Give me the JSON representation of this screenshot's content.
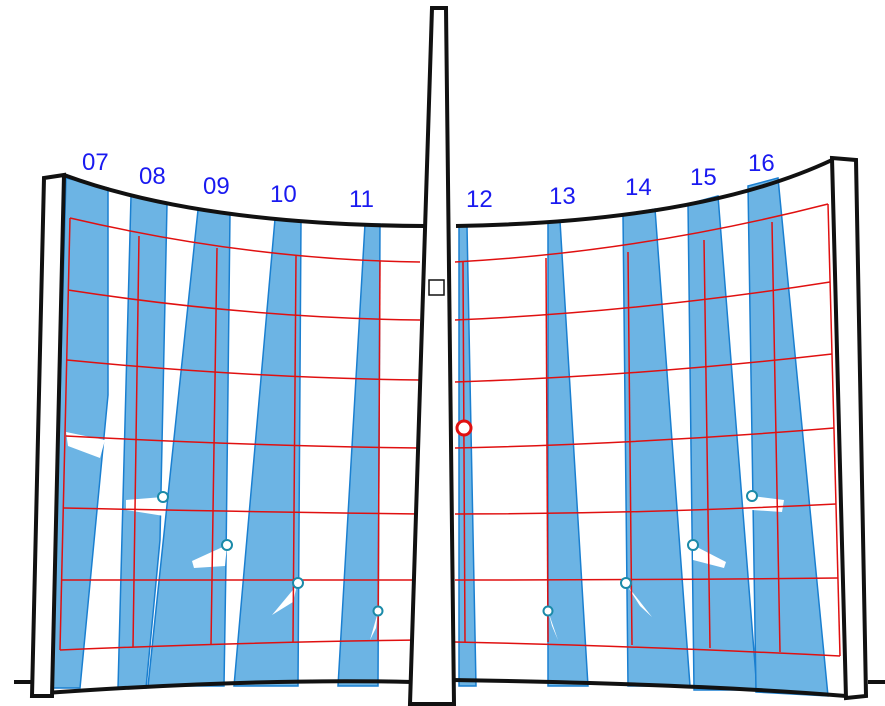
{
  "diagram": {
    "hour_labels_left": [
      "07",
      "08",
      "09",
      "10",
      "11"
    ],
    "hour_labels_right": [
      "12",
      "13",
      "14",
      "15",
      "16"
    ],
    "colors": {
      "band_fill": "#6cb4e4",
      "band_edge": "#1a7fd0",
      "grid": "#e01010",
      "outline": "#111111",
      "label": "#1a1af0",
      "marker": "#1a8aa8",
      "noon_marker": "#e01010"
    },
    "icons": {
      "top_square": "square-outline-icon"
    }
  }
}
